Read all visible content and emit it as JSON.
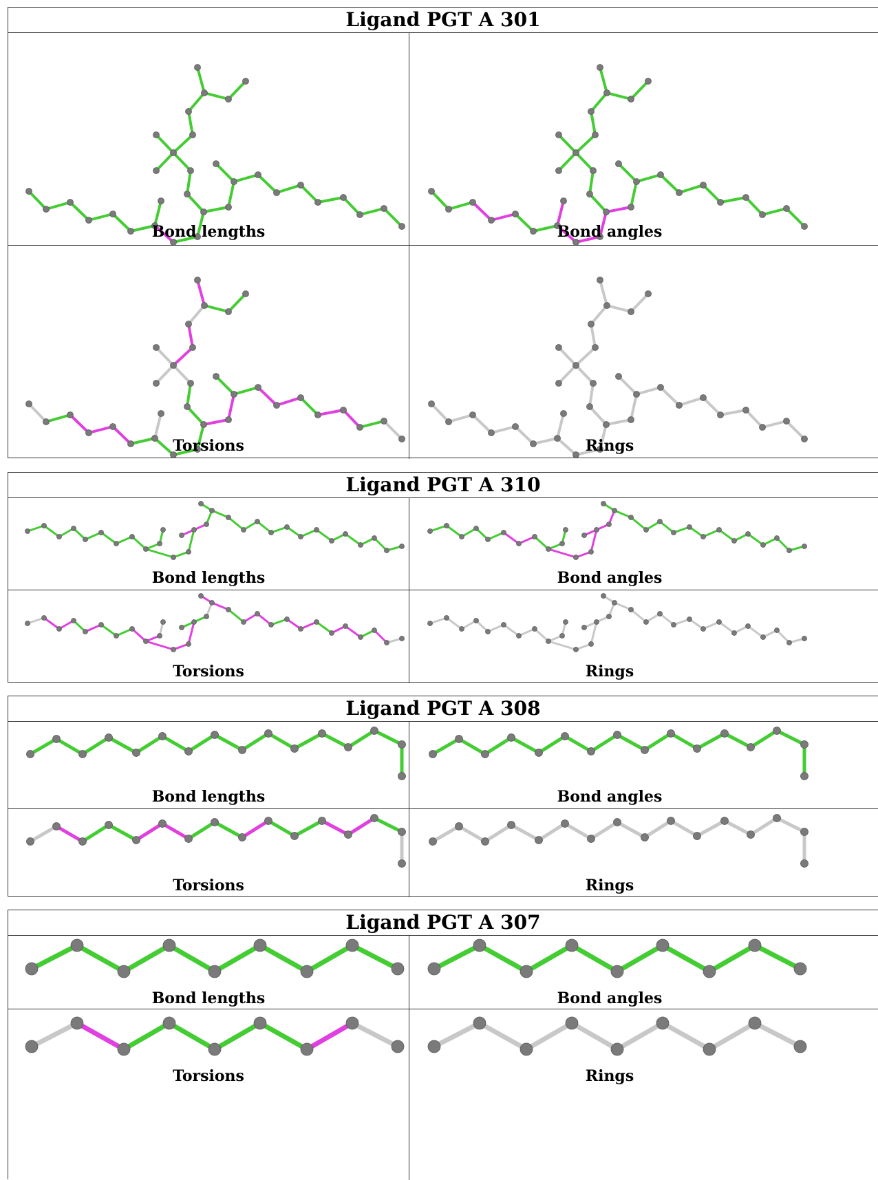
{
  "panels": [
    {
      "title": "Ligand PGT A 301",
      "views": [
        {
          "label": "Bond lengths"
        },
        {
          "label": "Bond angles"
        },
        {
          "label": "Torsions"
        },
        {
          "label": "Rings"
        }
      ]
    },
    {
      "title": "Ligand PGT A 310",
      "views": [
        {
          "label": "Bond lengths"
        },
        {
          "label": "Bond angles"
        },
        {
          "label": "Torsions"
        },
        {
          "label": "Rings"
        }
      ]
    },
    {
      "title": "Ligand PGT A 308",
      "views": [
        {
          "label": "Bond lengths"
        },
        {
          "label": "Bond angles"
        },
        {
          "label": "Torsions"
        },
        {
          "label": "Rings"
        }
      ]
    },
    {
      "title": "Ligand PGT A 307",
      "views": [
        {
          "label": "Bond lengths"
        },
        {
          "label": "Bond angles"
        },
        {
          "label": "Torsions"
        },
        {
          "label": "Rings"
        }
      ]
    }
  ],
  "colors": {
    "good": "#44cc33",
    "outlier": "#e040e0",
    "neutral": "#c8c8c8",
    "atom": "#7a7a7a"
  }
}
